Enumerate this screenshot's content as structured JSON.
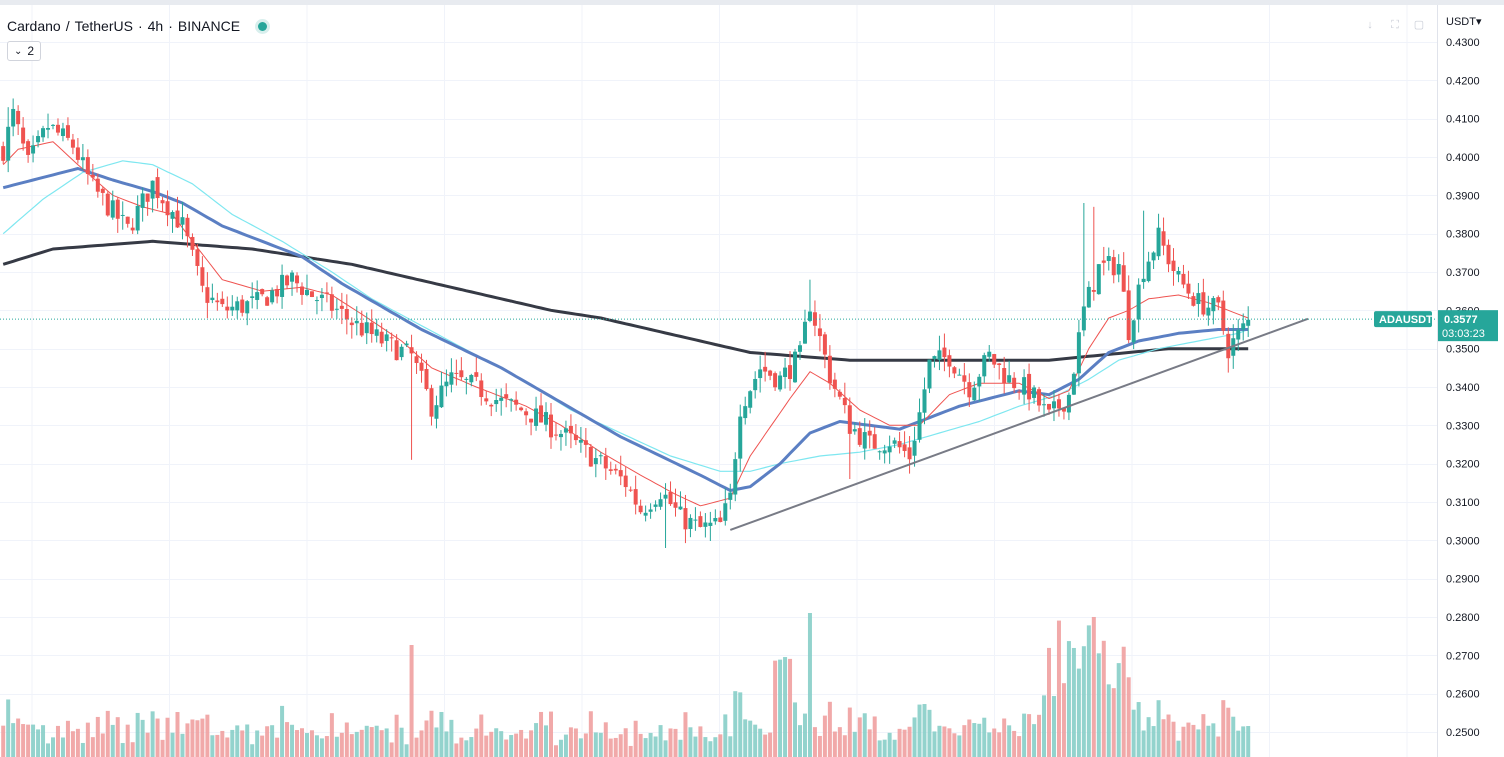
{
  "header": {
    "symbol": "Cardano",
    "quote": "TetherUS",
    "interval": "4h",
    "exchange": "BINANCE",
    "indicator_count": "2",
    "status_color": "#26a69a"
  },
  "price_scale": {
    "currency": "USDT"
  },
  "last_price": {
    "symbol_label": "ADAUSDT",
    "price": "0.3577",
    "countdown": "03:03:23"
  },
  "toolbar_icons": [
    "arrow-down-icon",
    "fullscreen-icon",
    "screenshot-icon"
  ],
  "colors": {
    "up": "#26a69a",
    "down": "#ef5350",
    "volume_up": "#80cbc4",
    "volume_down": "#ef9a9a",
    "ema_fast": "#ef5350",
    "ema_mid": "#5b7fc3",
    "ema_cyan": "#7ee7f0",
    "ema_slow": "#363a45",
    "trendline": "#787b86",
    "grid": "#f0f3fa"
  },
  "chart_data": {
    "type": "candlestick",
    "pair": "ADAUSDT",
    "y_ticks": [
      "0.4300",
      "0.4200",
      "0.4100",
      "0.4000",
      "0.3900",
      "0.3800",
      "0.3700",
      "0.3600",
      "0.3500",
      "0.3400",
      "0.3300",
      "0.3200",
      "0.3100",
      "0.3000",
      "0.2900",
      "0.2800",
      "0.2700",
      "0.2600",
      "0.2500"
    ],
    "ylim": [
      0.2445,
      0.4335
    ],
    "price_keypoints": [
      [
        0,
        0.402
      ],
      [
        2,
        0.411
      ],
      [
        5,
        0.398
      ],
      [
        9,
        0.408
      ],
      [
        14,
        0.403
      ],
      [
        18,
        0.392
      ],
      [
        25,
        0.381
      ],
      [
        30,
        0.393
      ],
      [
        36,
        0.382
      ],
      [
        40,
        0.365
      ],
      [
        44,
        0.36
      ],
      [
        51,
        0.362
      ],
      [
        58,
        0.368
      ],
      [
        62,
        0.364
      ],
      [
        67,
        0.36
      ],
      [
        71,
        0.356
      ],
      [
        76,
        0.352
      ],
      [
        82,
        0.348
      ],
      [
        86,
        0.335
      ],
      [
        90,
        0.342
      ],
      [
        95,
        0.34
      ],
      [
        100,
        0.336
      ],
      [
        106,
        0.333
      ],
      [
        112,
        0.328
      ],
      [
        118,
        0.322
      ],
      [
        125,
        0.315
      ],
      [
        128,
        0.308
      ],
      [
        132,
        0.313
      ],
      [
        136,
        0.306
      ],
      [
        140,
        0.303
      ],
      [
        144,
        0.304
      ],
      [
        146,
        0.311
      ],
      [
        148,
        0.335
      ],
      [
        152,
        0.345
      ],
      [
        156,
        0.342
      ],
      [
        160,
        0.348
      ],
      [
        162,
        0.362
      ],
      [
        166,
        0.343
      ],
      [
        170,
        0.33
      ],
      [
        174,
        0.325
      ],
      [
        178,
        0.326
      ],
      [
        182,
        0.322
      ],
      [
        184,
        0.333
      ],
      [
        186,
        0.346
      ],
      [
        190,
        0.348
      ],
      [
        194,
        0.34
      ],
      [
        198,
        0.348
      ],
      [
        202,
        0.342
      ],
      [
        206,
        0.339
      ],
      [
        210,
        0.332
      ],
      [
        214,
        0.338
      ],
      [
        217,
        0.36
      ],
      [
        220,
        0.371
      ],
      [
        224,
        0.372
      ],
      [
        226,
        0.355
      ],
      [
        229,
        0.371
      ],
      [
        232,
        0.379
      ],
      [
        236,
        0.368
      ],
      [
        240,
        0.362
      ],
      [
        244,
        0.36
      ],
      [
        246,
        0.35
      ],
      [
        250,
        0.357
      ]
    ],
    "ema_fast_keypoints": [
      [
        0,
        0.398
      ],
      [
        3,
        0.402
      ],
      [
        10,
        0.404
      ],
      [
        15,
        0.398
      ],
      [
        22,
        0.39
      ],
      [
        28,
        0.387
      ],
      [
        34,
        0.385
      ],
      [
        38,
        0.378
      ],
      [
        44,
        0.368
      ],
      [
        52,
        0.365
      ],
      [
        60,
        0.366
      ],
      [
        66,
        0.364
      ],
      [
        72,
        0.359
      ],
      [
        80,
        0.352
      ],
      [
        86,
        0.345
      ],
      [
        95,
        0.34
      ],
      [
        105,
        0.335
      ],
      [
        112,
        0.33
      ],
      [
        120,
        0.323
      ],
      [
        128,
        0.317
      ],
      [
        135,
        0.312
      ],
      [
        140,
        0.309
      ],
      [
        146,
        0.311
      ],
      [
        150,
        0.322
      ],
      [
        158,
        0.337
      ],
      [
        162,
        0.344
      ],
      [
        166,
        0.341
      ],
      [
        172,
        0.334
      ],
      [
        178,
        0.33
      ],
      [
        184,
        0.33
      ],
      [
        190,
        0.338
      ],
      [
        196,
        0.341
      ],
      [
        204,
        0.341
      ],
      [
        210,
        0.337
      ],
      [
        214,
        0.339
      ],
      [
        218,
        0.35
      ],
      [
        222,
        0.358
      ],
      [
        226,
        0.36
      ],
      [
        230,
        0.363
      ],
      [
        236,
        0.364
      ],
      [
        242,
        0.362
      ],
      [
        248,
        0.359
      ],
      [
        250,
        0.358
      ]
    ],
    "ema_mid_keypoints": [
      [
        0,
        0.392
      ],
      [
        6,
        0.394
      ],
      [
        15,
        0.397
      ],
      [
        22,
        0.394
      ],
      [
        30,
        0.391
      ],
      [
        36,
        0.388
      ],
      [
        44,
        0.382
      ],
      [
        52,
        0.378
      ],
      [
        60,
        0.374
      ],
      [
        68,
        0.367
      ],
      [
        76,
        0.361
      ],
      [
        84,
        0.355
      ],
      [
        92,
        0.35
      ],
      [
        100,
        0.345
      ],
      [
        108,
        0.339
      ],
      [
        116,
        0.333
      ],
      [
        124,
        0.327
      ],
      [
        132,
        0.322
      ],
      [
        140,
        0.317
      ],
      [
        146,
        0.313
      ],
      [
        150,
        0.314
      ],
      [
        156,
        0.32
      ],
      [
        162,
        0.328
      ],
      [
        168,
        0.331
      ],
      [
        174,
        0.33
      ],
      [
        180,
        0.329
      ],
      [
        186,
        0.332
      ],
      [
        192,
        0.335
      ],
      [
        198,
        0.337
      ],
      [
        204,
        0.339
      ],
      [
        210,
        0.338
      ],
      [
        216,
        0.342
      ],
      [
        222,
        0.349
      ],
      [
        228,
        0.352
      ],
      [
        236,
        0.354
      ],
      [
        244,
        0.355
      ],
      [
        250,
        0.355
      ]
    ],
    "ema_cyan_keypoints": [
      [
        0,
        0.38
      ],
      [
        8,
        0.389
      ],
      [
        16,
        0.396
      ],
      [
        24,
        0.399
      ],
      [
        30,
        0.398
      ],
      [
        38,
        0.393
      ],
      [
        46,
        0.385
      ],
      [
        56,
        0.378
      ],
      [
        66,
        0.37
      ],
      [
        74,
        0.363
      ],
      [
        84,
        0.356
      ],
      [
        94,
        0.349
      ],
      [
        104,
        0.342
      ],
      [
        114,
        0.334
      ],
      [
        124,
        0.328
      ],
      [
        134,
        0.322
      ],
      [
        144,
        0.318
      ],
      [
        150,
        0.318
      ],
      [
        156,
        0.32
      ],
      [
        164,
        0.322
      ],
      [
        172,
        0.323
      ],
      [
        180,
        0.325
      ],
      [
        188,
        0.328
      ],
      [
        196,
        0.331
      ],
      [
        204,
        0.335
      ],
      [
        212,
        0.338
      ],
      [
        218,
        0.342
      ],
      [
        224,
        0.347
      ],
      [
        232,
        0.35
      ],
      [
        240,
        0.352
      ],
      [
        248,
        0.354
      ],
      [
        250,
        0.355
      ]
    ],
    "ema_slow_keypoints": [
      [
        0,
        0.372
      ],
      [
        10,
        0.376
      ],
      [
        20,
        0.377
      ],
      [
        30,
        0.378
      ],
      [
        40,
        0.377
      ],
      [
        50,
        0.376
      ],
      [
        60,
        0.374
      ],
      [
        70,
        0.372
      ],
      [
        80,
        0.369
      ],
      [
        90,
        0.366
      ],
      [
        100,
        0.363
      ],
      [
        110,
        0.36
      ],
      [
        120,
        0.358
      ],
      [
        130,
        0.355
      ],
      [
        140,
        0.352
      ],
      [
        150,
        0.349
      ],
      [
        160,
        0.348
      ],
      [
        170,
        0.347
      ],
      [
        180,
        0.347
      ],
      [
        190,
        0.347
      ],
      [
        200,
        0.347
      ],
      [
        210,
        0.347
      ],
      [
        218,
        0.348
      ],
      [
        226,
        0.349
      ],
      [
        234,
        0.35
      ],
      [
        242,
        0.35
      ],
      [
        250,
        0.35
      ]
    ],
    "trendline": {
      "start": [
        0.3027,
        146
      ],
      "end": [
        0.3578,
        262
      ]
    },
    "last_price_value": 0.3577,
    "grid": true
  }
}
